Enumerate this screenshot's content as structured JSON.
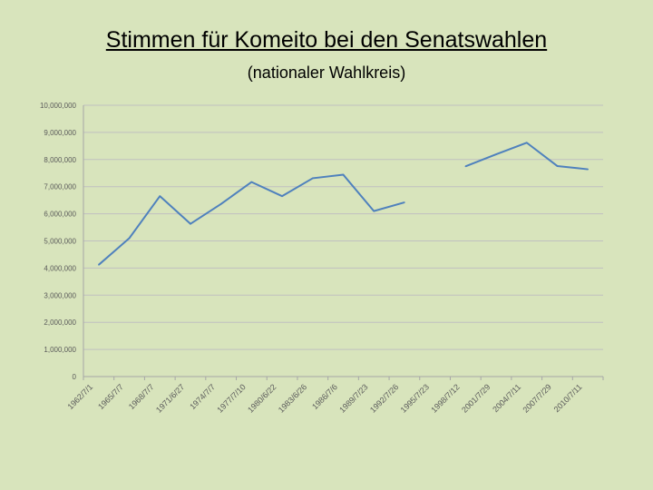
{
  "slide": {
    "title": "Stimmen für Komeito bei den Senatswahlen",
    "subtitle": "(nationaler Wahlkreis)"
  },
  "chart_data": {
    "type": "line",
    "title": "Stimmen für Komeito bei den Senatswahlen",
    "subtitle": "(nationaler Wahlkreis)",
    "xlabel": "",
    "ylabel": "",
    "ylim": [
      0,
      10000000
    ],
    "grid": true,
    "y_ticks": [
      "0",
      "1,000,000",
      "2,000,000",
      "3,000,000",
      "4,000,000",
      "5,000,000",
      "6,000,000",
      "7,000,000",
      "8,000,000",
      "9,000,000",
      "10,000,000"
    ],
    "categories": [
      "1962/7/1",
      "1965/7/7",
      "1968/7/7",
      "1971/6/27",
      "1974/7/7",
      "1977/7/10",
      "1980/6/22",
      "1983/6/26",
      "1986/7/6",
      "1989/7/23",
      "1992/7/26",
      "1995/7/23",
      "1998/7/12",
      "2001/7/29",
      "2004/7/11",
      "2007/7/29",
      "2010/7/11"
    ],
    "series": [
      {
        "color": "#4f81bd",
        "values": [
          4120000,
          5100000,
          6650000,
          5630000,
          6360000,
          7170000,
          6650000,
          7310000,
          7440000,
          6100000,
          6420000,
          null,
          7750000,
          8190000,
          8620000,
          7760000,
          7640000
        ]
      }
    ],
    "colors": {
      "background": "#d8e4bc",
      "gridline": "#c0c0c0",
      "line": "#4f81bd"
    }
  }
}
